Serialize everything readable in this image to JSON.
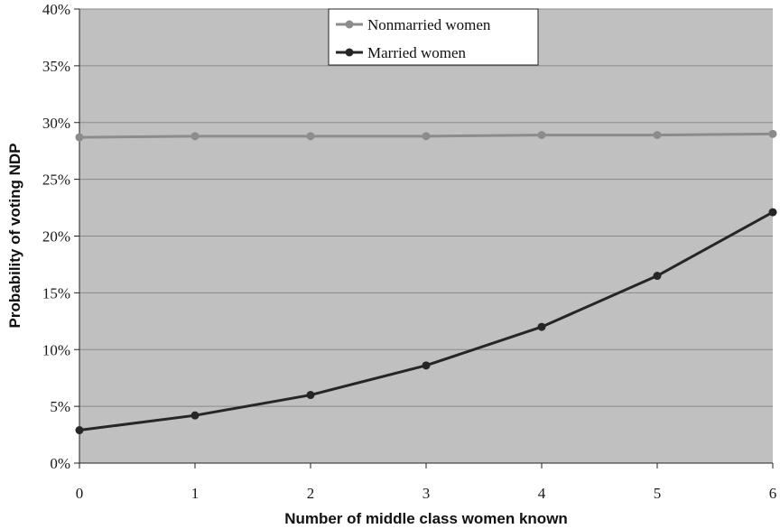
{
  "chart_data": {
    "type": "line",
    "xlabel": "Number of middle class women known",
    "ylabel": "Probability of voting NDP",
    "x": [
      0,
      1,
      2,
      3,
      4,
      5,
      6
    ],
    "x_tick_labels": [
      "0",
      "1",
      "2",
      "3",
      "4",
      "5",
      "6"
    ],
    "ylim": [
      0,
      0.4
    ],
    "y_ticks": [
      0,
      0.05,
      0.1,
      0.15,
      0.2,
      0.25,
      0.3,
      0.35,
      0.4
    ],
    "y_tick_labels": [
      "0%",
      "5%",
      "10%",
      "15%",
      "20%",
      "25%",
      "30%",
      "35%",
      "40%"
    ],
    "grid": "horizontal",
    "legend_position": "top-center",
    "plot_background": "#c0c0c0",
    "series": [
      {
        "name": "Nonmarried women",
        "color": "#8c8c8c",
        "values": [
          0.287,
          0.288,
          0.288,
          0.288,
          0.289,
          0.289,
          0.29
        ]
      },
      {
        "name": "Married women",
        "color": "#262626",
        "values": [
          0.029,
          0.042,
          0.06,
          0.086,
          0.12,
          0.165,
          0.221
        ]
      }
    ]
  }
}
